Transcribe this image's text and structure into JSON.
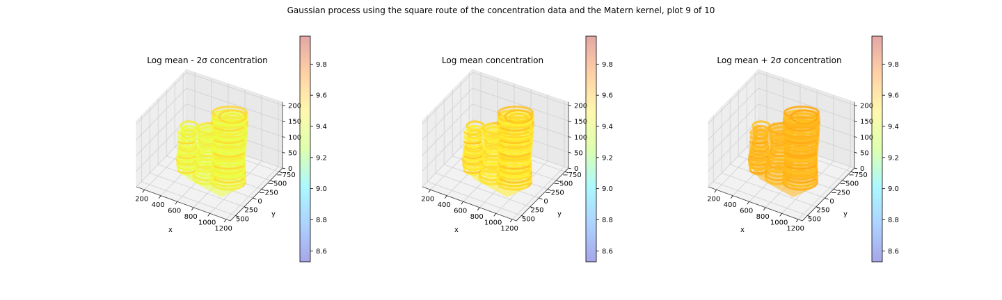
{
  "figure": {
    "suptitle": "Gaussian process using the square route of the concentration data and the Matern kernel, plot 9 of 10"
  },
  "colors": {
    "pane": "#f2f2f2",
    "grid": "#cfcfcf",
    "axis": "#444444"
  },
  "chart_data": [
    {
      "type": "scatter3d",
      "title": "Log mean - 2σ concentration",
      "xlabel": "x",
      "ylabel": "y",
      "zlabel": "",
      "x_ticks": [
        "200",
        "400",
        "600",
        "800",
        "1000",
        "1200"
      ],
      "y_ticks": [
        "500",
        "250",
        "0",
        "−250",
        "−500",
        "−750"
      ],
      "z_ticks": [
        "0",
        "50",
        "100",
        "150",
        "200"
      ],
      "xlim": [
        100,
        1250
      ],
      "ylim": [
        -850,
        650
      ],
      "zlim": [
        0,
        210
      ],
      "colorbar": {
        "ticks": [
          "9.8",
          "9.6",
          "9.4",
          "9.2",
          "9.0",
          "8.8",
          "8.6"
        ],
        "range": [
          8.53,
          9.98
        ]
      },
      "approx_value": 9.38,
      "ring_colors": [
        "#ebff44",
        "#f5f036",
        "#ffd832"
      ]
    },
    {
      "type": "scatter3d",
      "title": "Log mean concentration",
      "xlabel": "x",
      "ylabel": "y",
      "zlabel": "",
      "x_ticks": [
        "200",
        "400",
        "600",
        "800",
        "1000",
        "1200"
      ],
      "y_ticks": [
        "500",
        "250",
        "0",
        "−250",
        "−500",
        "−750"
      ],
      "z_ticks": [
        "0",
        "50",
        "100",
        "150",
        "200"
      ],
      "xlim": [
        100,
        1250
      ],
      "ylim": [
        -850,
        650
      ],
      "zlim": [
        0,
        210
      ],
      "colorbar": {
        "ticks": [
          "9.8",
          "9.6",
          "9.4",
          "9.2",
          "9.0",
          "8.8",
          "8.6"
        ],
        "range": [
          8.53,
          9.98
        ]
      },
      "approx_value": 9.5,
      "ring_colors": [
        "#ffee2e",
        "#ffd420",
        "#ffc224"
      ]
    },
    {
      "type": "scatter3d",
      "title": "Log mean + 2σ concentration",
      "xlabel": "x",
      "ylabel": "y",
      "zlabel": "",
      "x_ticks": [
        "200",
        "400",
        "600",
        "800",
        "1000",
        "1200"
      ],
      "y_ticks": [
        "500",
        "250",
        "0",
        "−250",
        "−500",
        "−750"
      ],
      "z_ticks": [
        "0",
        "50",
        "100",
        "150",
        "200"
      ],
      "xlim": [
        100,
        1250
      ],
      "ylim": [
        -850,
        650
      ],
      "zlim": [
        0,
        210
      ],
      "colorbar": {
        "ticks": [
          "9.8",
          "9.6",
          "9.4",
          "9.2",
          "9.0",
          "8.8",
          "8.6"
        ],
        "range": [
          8.53,
          9.98
        ]
      },
      "approx_value": 9.6,
      "ring_colors": [
        "#ffb619",
        "#ffc21e",
        "#ffa812"
      ]
    }
  ]
}
